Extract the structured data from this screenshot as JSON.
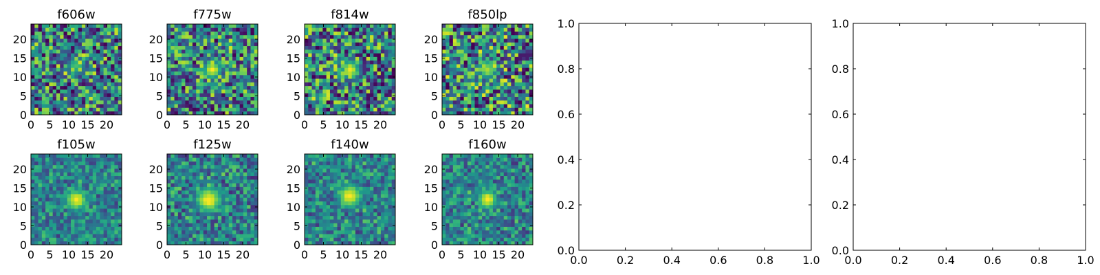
{
  "chart_data": [
    {
      "type": "heatmap",
      "title": "f606w",
      "xticks": [
        "0",
        "5",
        "10",
        "15",
        "20"
      ],
      "yticks": [
        "0",
        "5",
        "10",
        "15",
        "20"
      ],
      "xlim": [
        0,
        24
      ],
      "ylim": [
        0,
        24
      ],
      "grid_size": 25,
      "colormap": "viridis",
      "source_center": [
        12,
        13
      ],
      "peak_level": 0.72,
      "source_sigma": 2.0,
      "noise_level": 0.95,
      "seed": 101
    },
    {
      "type": "heatmap",
      "title": "f775w",
      "xticks": [
        "0",
        "5",
        "10",
        "15",
        "20"
      ],
      "yticks": [
        "0",
        "5",
        "10",
        "15",
        "20"
      ],
      "xlim": [
        0,
        24
      ],
      "ylim": [
        0,
        24
      ],
      "grid_size": 25,
      "colormap": "viridis",
      "source_center": [
        12,
        12
      ],
      "peak_level": 0.98,
      "source_sigma": 2.0,
      "noise_level": 0.9,
      "seed": 202
    },
    {
      "type": "heatmap",
      "title": "f814w",
      "xticks": [
        "0",
        "5",
        "10",
        "15",
        "20"
      ],
      "yticks": [
        "0",
        "5",
        "10",
        "15",
        "20"
      ],
      "xlim": [
        0,
        24
      ],
      "ylim": [
        0,
        24
      ],
      "grid_size": 25,
      "colormap": "viridis",
      "source_center": [
        12,
        12
      ],
      "peak_level": 0.98,
      "source_sigma": 2.0,
      "noise_level": 0.95,
      "seed": 303
    },
    {
      "type": "heatmap",
      "title": "f850lp",
      "xticks": [
        "0",
        "5",
        "10",
        "15",
        "20"
      ],
      "yticks": [
        "0",
        "5",
        "10",
        "15",
        "20"
      ],
      "xlim": [
        0,
        24
      ],
      "ylim": [
        0,
        24
      ],
      "grid_size": 25,
      "colormap": "viridis",
      "source_center": [
        12,
        12
      ],
      "peak_level": 0.9,
      "source_sigma": 2.0,
      "noise_level": 1.0,
      "seed": 404
    },
    {
      "type": "heatmap",
      "title": "f105w",
      "xticks": [
        "0",
        "5",
        "10",
        "15",
        "20"
      ],
      "yticks": [
        "0",
        "5",
        "10",
        "15",
        "20"
      ],
      "xlim": [
        0,
        24
      ],
      "ylim": [
        0,
        24
      ],
      "grid_size": 25,
      "colormap": "viridis",
      "source_center": [
        12,
        12
      ],
      "peak_level": 1.0,
      "source_sigma": 2.5,
      "noise_level": 0.5,
      "seed": 505
    },
    {
      "type": "heatmap",
      "title": "f125w",
      "xticks": [
        "0",
        "5",
        "10",
        "15",
        "20"
      ],
      "yticks": [
        "0",
        "5",
        "10",
        "15",
        "20"
      ],
      "xlim": [
        0,
        24
      ],
      "ylim": [
        0,
        24
      ],
      "grid_size": 25,
      "colormap": "viridis",
      "source_center": [
        11,
        12
      ],
      "peak_level": 1.0,
      "source_sigma": 3.0,
      "noise_level": 0.6,
      "seed": 606
    },
    {
      "type": "heatmap",
      "title": "f140w",
      "xticks": [
        "0",
        "5",
        "10",
        "15",
        "20"
      ],
      "yticks": [
        "0",
        "5",
        "10",
        "15",
        "20"
      ],
      "xlim": [
        0,
        24
      ],
      "ylim": [
        0,
        24
      ],
      "grid_size": 25,
      "colormap": "viridis",
      "source_center": [
        12,
        13
      ],
      "peak_level": 1.0,
      "source_sigma": 2.8,
      "noise_level": 0.55,
      "seed": 707
    },
    {
      "type": "heatmap",
      "title": "f160w",
      "xticks": [
        "0",
        "5",
        "10",
        "15",
        "20"
      ],
      "yticks": [
        "0",
        "5",
        "10",
        "15",
        "20"
      ],
      "xlim": [
        0,
        24
      ],
      "ylim": [
        0,
        24
      ],
      "grid_size": 25,
      "colormap": "viridis",
      "source_center": [
        12,
        12
      ],
      "peak_level": 1.0,
      "source_sigma": 2.3,
      "noise_level": 0.55,
      "seed": 808
    },
    {
      "type": "line",
      "title": "",
      "xlabel": "",
      "ylabel": "",
      "xlim": [
        0,
        1
      ],
      "ylim": [
        0,
        1
      ],
      "xticks": [
        "0.0",
        "0.2",
        "0.4",
        "0.6",
        "0.8",
        "1.0"
      ],
      "yticks": [
        "0.0",
        "0.2",
        "0.4",
        "0.6",
        "0.8",
        "1.0"
      ],
      "series": []
    },
    {
      "type": "line",
      "title": "",
      "xlabel": "",
      "ylabel": "",
      "xlim": [
        0,
        1
      ],
      "ylim": [
        0,
        1
      ],
      "xticks": [
        "0.0",
        "0.2",
        "0.4",
        "0.6",
        "0.8",
        "1.0"
      ],
      "yticks": [
        "0.0",
        "0.2",
        "0.4",
        "0.6",
        "0.8",
        "1.0"
      ],
      "series": []
    }
  ]
}
